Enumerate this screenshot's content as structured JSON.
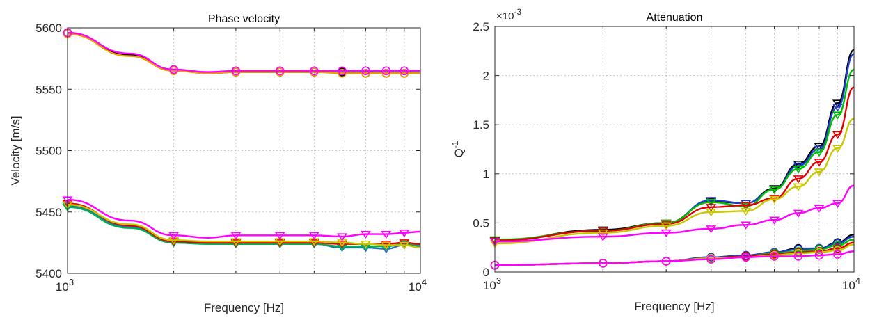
{
  "chart_data": [
    {
      "type": "line",
      "title": "Phase velocity",
      "xlabel": "Frequency [Hz]",
      "ylabel": "Velocity [m/s]",
      "xscale": "log",
      "xlim": [
        1000,
        10000
      ],
      "ylim": [
        5400,
        5600
      ],
      "grid": true,
      "xticks": [
        {
          "v": 1000,
          "base": "10",
          "exp": "3"
        },
        {
          "v": 10000,
          "base": "10",
          "exp": "4"
        }
      ],
      "yticks": [
        {
          "v": 5400,
          "label": "5400"
        },
        {
          "v": 5450,
          "label": "5450"
        },
        {
          "v": 5500,
          "label": "5500"
        },
        {
          "v": 5550,
          "label": "5550"
        },
        {
          "v": 5600,
          "label": "5600"
        }
      ],
      "marker_x": [
        1000,
        2000,
        3000,
        4000,
        5000,
        6000,
        7000,
        8000,
        9000
      ],
      "series": [
        {
          "color": "#000000",
          "marker": "circle",
          "x": [
            1000,
            1500,
            2000,
            2500,
            3000,
            4000,
            5000,
            6000,
            7000,
            8000,
            9000,
            10000
          ],
          "y": [
            5596,
            5578,
            5566,
            5563,
            5564,
            5564,
            5564,
            5564,
            5563,
            5563,
            5563,
            5563
          ]
        },
        {
          "color": "#e8a200",
          "marker": "circle",
          "x": [
            1000,
            1500,
            2000,
            2500,
            3000,
            4000,
            5000,
            6000,
            7000,
            8000,
            9000,
            10000
          ],
          "y": [
            5595,
            5577,
            5565,
            5563,
            5564,
            5564,
            5564,
            5563,
            5563,
            5563,
            5563,
            5563
          ]
        },
        {
          "color": "#ff00ff",
          "marker": "circle",
          "x": [
            1000,
            1500,
            2000,
            2500,
            3000,
            4000,
            5000,
            6000,
            7000,
            8000,
            9000,
            10000
          ],
          "y": [
            5596,
            5579,
            5566,
            5564,
            5565,
            5565,
            5565,
            5565,
            5565,
            5565,
            5565,
            5565
          ]
        },
        {
          "color": "#1f6fb5",
          "marker": "triangle-down",
          "x": [
            1000,
            1500,
            2000,
            2500,
            3000,
            4000,
            5000,
            6000,
            7000,
            8000,
            9000,
            10000
          ],
          "y": [
            5455,
            5438,
            5425,
            5424,
            5424,
            5424,
            5424,
            5421,
            5421,
            5420,
            5423,
            5422
          ]
        },
        {
          "color": "#00b050",
          "marker": "triangle-down",
          "x": [
            1000,
            1500,
            2000,
            2500,
            3000,
            4000,
            5000,
            6000,
            7000,
            8000,
            9000,
            10000
          ],
          "y": [
            5454,
            5437,
            5425,
            5424,
            5424,
            5424,
            5424,
            5422,
            5422,
            5422,
            5424,
            5423
          ]
        },
        {
          "color": "#e00000",
          "marker": "triangle-down",
          "x": [
            1000,
            1500,
            2000,
            2500,
            3000,
            4000,
            5000,
            6000,
            7000,
            8000,
            9000,
            10000
          ],
          "y": [
            5457,
            5439,
            5426,
            5425,
            5425,
            5425,
            5425,
            5424,
            5424,
            5424,
            5425,
            5424
          ]
        },
        {
          "color": "#c8c800",
          "marker": "triangle-down",
          "x": [
            1000,
            1500,
            2000,
            2500,
            3000,
            4000,
            5000,
            6000,
            7000,
            8000,
            9000,
            10000
          ],
          "y": [
            5456,
            5440,
            5427,
            5426,
            5426,
            5426,
            5426,
            5425,
            5424,
            5423,
            5423,
            5421
          ]
        },
        {
          "color": "#ff00ff",
          "marker": "triangle-down",
          "x": [
            1000,
            1500,
            2000,
            2500,
            3000,
            4000,
            5000,
            6000,
            7000,
            8000,
            9000,
            10000
          ],
          "y": [
            5460,
            5443,
            5431,
            5429,
            5431,
            5431,
            5431,
            5430,
            5432,
            5432,
            5433,
            5434
          ]
        }
      ]
    },
    {
      "type": "line",
      "title": "Attenuation",
      "xlabel": "Frequency [Hz]",
      "ylabel": "Q",
      "ylabel_superscript": "-1",
      "yscale_label": {
        "prefix": "×",
        "base": "10",
        "exp": "-3"
      },
      "xscale": "log",
      "xlim": [
        1000,
        10000
      ],
      "ylim": [
        0,
        2.5
      ],
      "grid": true,
      "xticks": [
        {
          "v": 1000,
          "base": "10",
          "exp": "3"
        },
        {
          "v": 10000,
          "base": "10",
          "exp": "4"
        }
      ],
      "yticks": [
        {
          "v": 0,
          "label": "0"
        },
        {
          "v": 0.5,
          "label": "0.5"
        },
        {
          "v": 1,
          "label": "1"
        },
        {
          "v": 1.5,
          "label": "1.5"
        },
        {
          "v": 2,
          "label": "2"
        },
        {
          "v": 2.5,
          "label": "2.5"
        }
      ],
      "marker_x": [
        1000,
        2000,
        3000,
        4000,
        5000,
        6000,
        7000,
        8000,
        9000
      ],
      "series": [
        {
          "color": "#000000",
          "marker": "triangle-down",
          "x": [
            1000,
            2000,
            3000,
            4000,
            5000,
            6000,
            7000,
            8000,
            9000,
            10000
          ],
          "y": [
            0.32,
            0.43,
            0.5,
            0.72,
            0.7,
            0.85,
            1.1,
            1.28,
            1.72,
            2.26
          ]
        },
        {
          "color": "#1f3fd0",
          "marker": "triangle-down",
          "x": [
            1000,
            2000,
            3000,
            4000,
            5000,
            6000,
            7000,
            8000,
            9000,
            10000
          ],
          "y": [
            0.32,
            0.42,
            0.49,
            0.73,
            0.7,
            0.84,
            1.08,
            1.25,
            1.68,
            2.22
          ]
        },
        {
          "color": "#00c000",
          "marker": "triangle-down",
          "x": [
            1000,
            2000,
            3000,
            4000,
            5000,
            6000,
            7000,
            8000,
            9000,
            10000
          ],
          "y": [
            0.33,
            0.42,
            0.5,
            0.71,
            0.67,
            0.84,
            1.05,
            1.22,
            1.6,
            2.06
          ]
        },
        {
          "color": "#e00000",
          "marker": "triangle-down",
          "x": [
            1000,
            2000,
            3000,
            4000,
            5000,
            6000,
            7000,
            8000,
            9000,
            10000
          ],
          "y": [
            0.32,
            0.42,
            0.49,
            0.66,
            0.68,
            0.75,
            0.95,
            1.12,
            1.4,
            1.88
          ]
        },
        {
          "color": "#c8c800",
          "marker": "triangle-down",
          "x": [
            1000,
            2000,
            3000,
            4000,
            5000,
            6000,
            7000,
            8000,
            9000,
            10000
          ],
          "y": [
            0.29,
            0.4,
            0.47,
            0.61,
            0.62,
            0.74,
            0.87,
            1.02,
            1.26,
            1.56
          ]
        },
        {
          "color": "#ff00ff",
          "marker": "triangle-down",
          "x": [
            1000,
            2000,
            3000,
            4000,
            5000,
            6000,
            7000,
            8000,
            9000,
            10000
          ],
          "y": [
            0.31,
            0.36,
            0.4,
            0.44,
            0.48,
            0.53,
            0.6,
            0.65,
            0.7,
            0.88
          ]
        },
        {
          "color": "#000000",
          "marker": "circle",
          "x": [
            1000,
            2000,
            3000,
            4000,
            5000,
            6000,
            7000,
            8000,
            9000,
            10000
          ],
          "y": [
            0.07,
            0.09,
            0.11,
            0.15,
            0.17,
            0.2,
            0.24,
            0.24,
            0.3,
            0.38
          ]
        },
        {
          "color": "#1f3fd0",
          "marker": "circle",
          "x": [
            1000,
            2000,
            3000,
            4000,
            5000,
            6000,
            7000,
            8000,
            9000,
            10000
          ],
          "y": [
            0.07,
            0.09,
            0.11,
            0.15,
            0.17,
            0.2,
            0.23,
            0.24,
            0.29,
            0.36
          ]
        },
        {
          "color": "#00c000",
          "marker": "circle",
          "x": [
            1000,
            2000,
            3000,
            4000,
            5000,
            6000,
            7000,
            8000,
            9000,
            10000
          ],
          "y": [
            0.07,
            0.09,
            0.11,
            0.14,
            0.16,
            0.19,
            0.21,
            0.23,
            0.27,
            0.33
          ]
        },
        {
          "color": "#e00000",
          "marker": "circle",
          "x": [
            1000,
            2000,
            3000,
            4000,
            5000,
            6000,
            7000,
            8000,
            9000,
            10000
          ],
          "y": [
            0.07,
            0.09,
            0.11,
            0.14,
            0.16,
            0.18,
            0.2,
            0.21,
            0.24,
            0.3
          ]
        },
        {
          "color": "#c8c800",
          "marker": "circle",
          "x": [
            1000,
            2000,
            3000,
            4000,
            5000,
            6000,
            7000,
            8000,
            9000,
            10000
          ],
          "y": [
            0.07,
            0.09,
            0.11,
            0.14,
            0.15,
            0.17,
            0.19,
            0.2,
            0.22,
            0.28
          ]
        },
        {
          "color": "#ff00ff",
          "marker": "circle",
          "x": [
            1000,
            2000,
            3000,
            4000,
            5000,
            6000,
            7000,
            8000,
            9000,
            10000
          ],
          "y": [
            0.07,
            0.09,
            0.11,
            0.13,
            0.15,
            0.16,
            0.16,
            0.17,
            0.18,
            0.21
          ]
        }
      ]
    }
  ]
}
